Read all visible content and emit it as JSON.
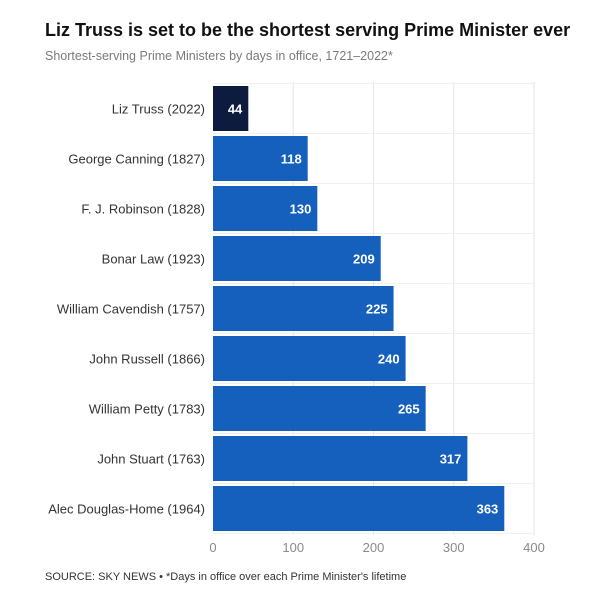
{
  "title": "Liz Truss is set to be the shortest serving Prime Minister ever",
  "subtitle": "Shortest-serving Prime Ministers by days in office, 1721–2022*",
  "source": "SOURCE: SKY NEWS • *Days in office over each Prime Minister's lifetime",
  "colors": {
    "highlight": "#0d1b3e",
    "bar": "#1560bd",
    "grid": "#e6e6e6",
    "tick": "#8a8a8a"
  },
  "chart_data": {
    "type": "bar",
    "orientation": "horizontal",
    "categories": [
      "Liz Truss (2022)",
      "George Canning (1827)",
      "F. J. Robinson (1828)",
      "Bonar Law (1923)",
      "William Cavendish (1757)",
      "John Russell (1866)",
      "William Petty (1783)",
      "John Stuart (1763)",
      "Alec Douglas-Home (1964)"
    ],
    "values": [
      44,
      118,
      130,
      209,
      225,
      240,
      265,
      317,
      363
    ],
    "highlighted_index": 0,
    "xlim": [
      0,
      400
    ],
    "xticks": [
      "0",
      "100",
      "200",
      "300",
      "400"
    ],
    "xlabel": "",
    "ylabel": "",
    "grid": true,
    "data_labels": true
  }
}
